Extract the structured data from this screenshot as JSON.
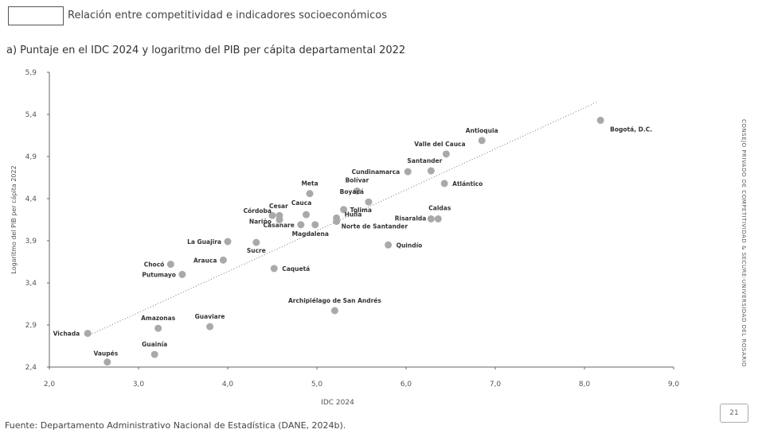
{
  "header": {
    "title": "Relación entre competitividad e indicadores socioeconómicos"
  },
  "subtitle": "a) Puntaje en el IDC 2024 y logaritmo del PIB per cápita departamental 2022",
  "source": "Fuente: Departamento Administrativo Nacional de Estadística (DANE, 2024b).",
  "side_text": "CONSEJO PRIVADO DE COMPETITIVIDAD & SECURE-UNIVERSIDAD DEL ROSARIO",
  "page_number": "21",
  "chart_data": {
    "type": "scatter",
    "xlabel": "IDC 2024",
    "ylabel": "Logaritmo del PIB per cápita 2022",
    "xlim": [
      2.0,
      9.0
    ],
    "ylim": [
      2.4,
      5.9
    ],
    "xticks": [
      "2,0",
      "3,0",
      "4,0",
      "5,0",
      "6,0",
      "7,0",
      "8,0",
      "9,0"
    ],
    "yticks": [
      "2,4",
      "2,9",
      "3,4",
      "3,9",
      "4,4",
      "4,9",
      "5,4",
      "5,9"
    ],
    "point_color": "#a9a9a9",
    "trendline": {
      "style": "dotted",
      "from": [
        2.45,
        2.78
      ],
      "to": [
        8.15,
        5.55
      ]
    },
    "points": [
      {
        "label": "Bogotá, D.C.",
        "x": 8.18,
        "y": 5.33
      },
      {
        "label": "Antioquia",
        "x": 6.85,
        "y": 5.09
      },
      {
        "label": "Valle del Cauca",
        "x": 6.45,
        "y": 4.93
      },
      {
        "label": "Santander",
        "x": 6.28,
        "y": 4.73
      },
      {
        "label": "Cundinamarca",
        "x": 6.02,
        "y": 4.72
      },
      {
        "label": "Atlántico",
        "x": 6.43,
        "y": 4.58
      },
      {
        "label": "Bolívar",
        "x": 5.45,
        "y": 4.49
      },
      {
        "label": "Meta",
        "x": 4.92,
        "y": 4.46
      },
      {
        "label": "Boyacá",
        "x": 5.58,
        "y": 4.36
      },
      {
        "label": "Tolima",
        "x": 5.3,
        "y": 4.27
      },
      {
        "label": "Caldas",
        "x": 6.36,
        "y": 4.16
      },
      {
        "label": "Risaralda",
        "x": 6.28,
        "y": 4.16
      },
      {
        "label": "Huila",
        "x": 5.22,
        "y": 4.17
      },
      {
        "label": "Norte de Santander",
        "x": 5.22,
        "y": 4.13
      },
      {
        "label": "Cesar",
        "x": 4.5,
        "y": 4.2
      },
      {
        "label": "Cauca",
        "x": 4.88,
        "y": 4.21
      },
      {
        "label": "Córdoba",
        "x": 4.58,
        "y": 4.2
      },
      {
        "label": "Nariño",
        "x": 4.58,
        "y": 4.15
      },
      {
        "label": "Casanare",
        "x": 4.82,
        "y": 4.09
      },
      {
        "label": "Magdalena",
        "x": 4.98,
        "y": 4.09
      },
      {
        "label": "La Guajira",
        "x": 4.0,
        "y": 3.89
      },
      {
        "label": "Sucre",
        "x": 4.32,
        "y": 3.88
      },
      {
        "label": "Quindío",
        "x": 5.8,
        "y": 3.85
      },
      {
        "label": "Arauca",
        "x": 3.95,
        "y": 3.67
      },
      {
        "label": "Chocó",
        "x": 3.36,
        "y": 3.62
      },
      {
        "label": "Caquetá",
        "x": 4.52,
        "y": 3.57
      },
      {
        "label": "Putumayo",
        "x": 3.49,
        "y": 3.5
      },
      {
        "label": "Archipiélago de San Andrés",
        "x": 5.2,
        "y": 3.07
      },
      {
        "label": "Amazonas",
        "x": 3.22,
        "y": 2.86
      },
      {
        "label": "Guaviare",
        "x": 3.8,
        "y": 2.88
      },
      {
        "label": "Vichada",
        "x": 2.43,
        "y": 2.8
      },
      {
        "label": "Guainía",
        "x": 3.18,
        "y": 2.55
      },
      {
        "label": "Vaupés",
        "x": 2.65,
        "y": 2.46
      }
    ]
  }
}
